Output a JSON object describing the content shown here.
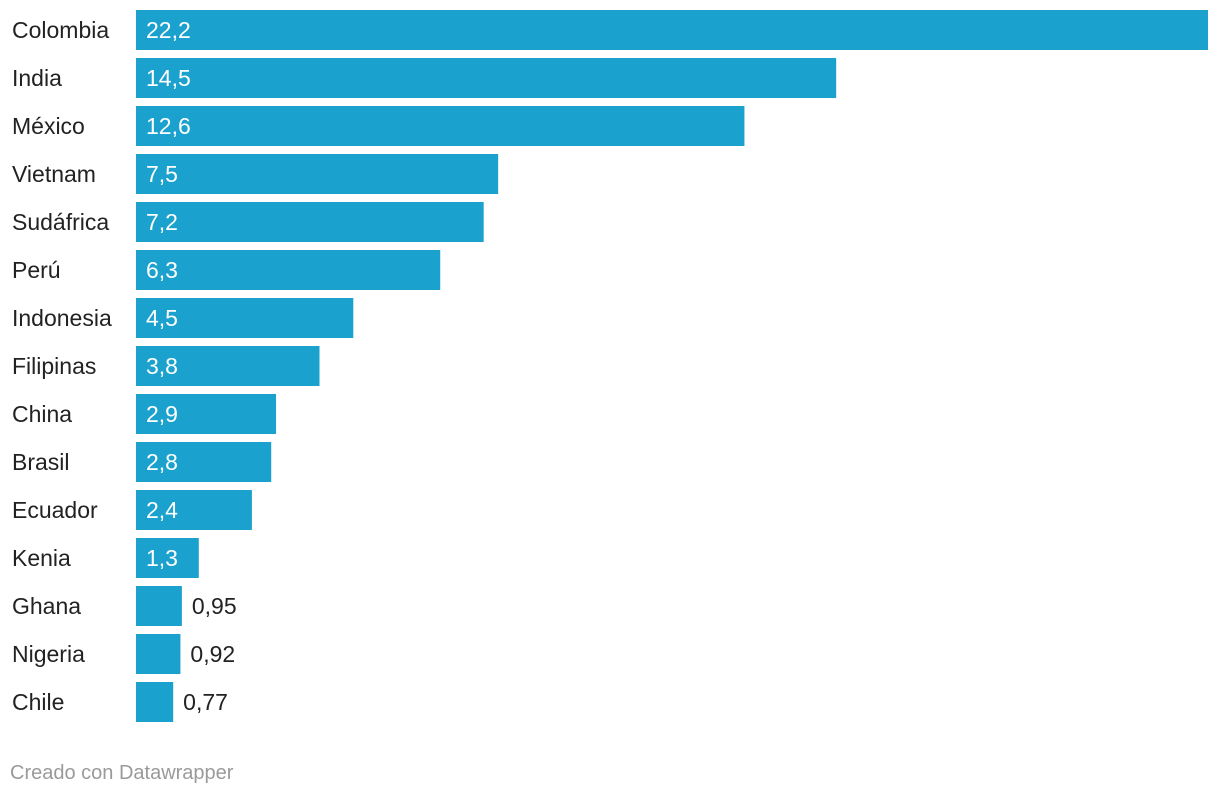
{
  "chart_data": {
    "type": "bar",
    "orientation": "horizontal",
    "categories": [
      "Colombia",
      "India",
      "México",
      "Vietnam",
      "Sudáfrica",
      "Perú",
      "Indonesia",
      "Filipinas",
      "China",
      "Brasil",
      "Ecuador",
      "Kenia",
      "Ghana",
      "Nigeria",
      "Chile"
    ],
    "values": [
      22.2,
      14.5,
      12.6,
      7.5,
      7.2,
      6.3,
      4.5,
      3.8,
      2.9,
      2.8,
      2.4,
      1.3,
      0.95,
      0.92,
      0.77
    ],
    "value_labels": [
      "22,2",
      "14,5",
      "12,6",
      "7,5",
      "7,2",
      "6,3",
      "4,5",
      "3,8",
      "2,9",
      "2,8",
      "2,4",
      "1,3",
      "0,95",
      "0,92",
      "0,77"
    ],
    "xlim": [
      0,
      22.2
    ],
    "title": "",
    "xlabel": "",
    "ylabel": "",
    "grid": false
  },
  "colors": {
    "bar": "#1aa1cd",
    "label_inside": "#ffffff",
    "label_outside": "#222222",
    "credit": "#9a9a9a"
  },
  "footer": {
    "credit": "Creado con Datawrapper"
  }
}
